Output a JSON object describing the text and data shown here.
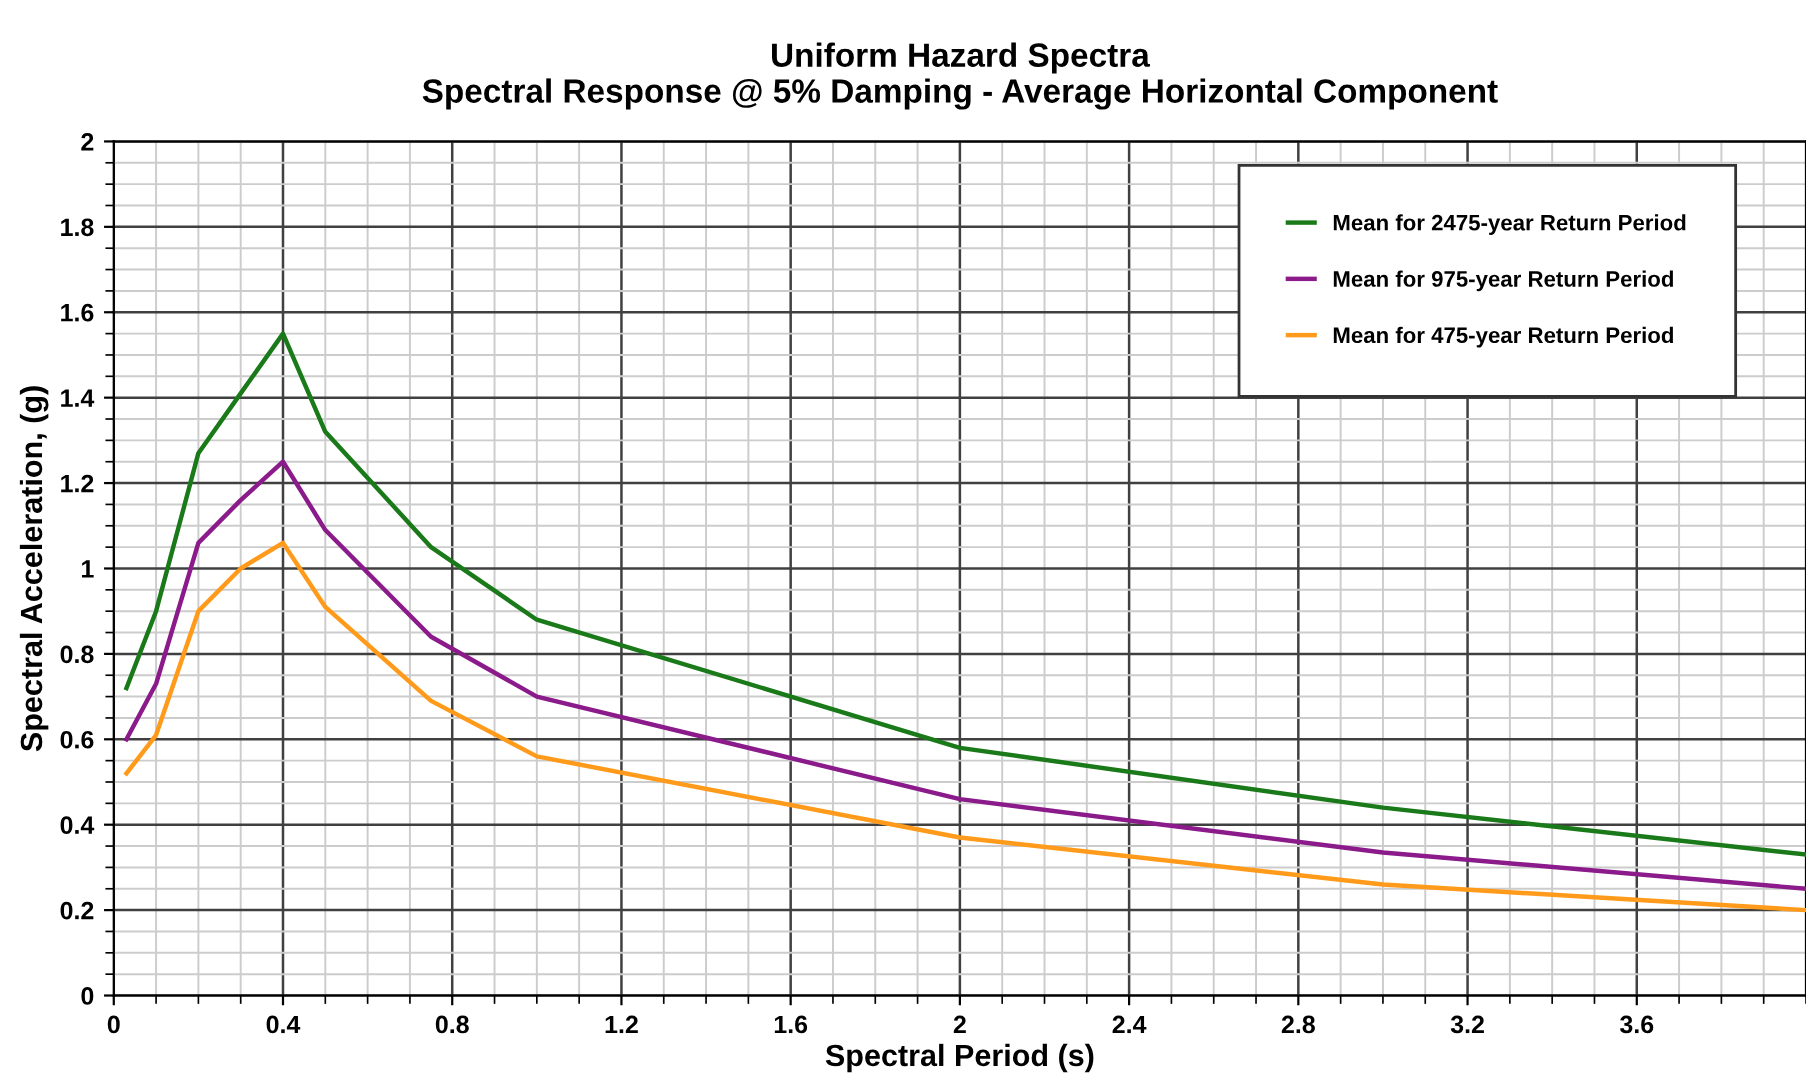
{
  "chart_data": {
    "type": "line",
    "title": "Uniform Hazard Spectra\nSpectral Response @ 5% Damping - Average Horizontal Component",
    "xlabel": "Spectral Period (s)",
    "ylabel": "Spectral Acceleration, (g)",
    "x": [
      0.03,
      0.1,
      0.2,
      0.3,
      0.4,
      0.5,
      0.75,
      1.0,
      2.0,
      3.0,
      4.0
    ],
    "series": [
      {
        "name": "Mean for 2475-year Return Period",
        "color": "#1a7a1a",
        "values": [
          0.72,
          0.9,
          1.27,
          1.41,
          1.55,
          1.32,
          1.05,
          0.88,
          0.58,
          0.44,
          0.33
        ]
      },
      {
        "name": "Mean for 975-year Return Period",
        "color": "#8b1a8b",
        "values": [
          0.6,
          0.73,
          1.06,
          1.16,
          1.25,
          1.09,
          0.84,
          0.7,
          0.46,
          0.335,
          0.25
        ]
      },
      {
        "name": "Mean for 475-year Return Period",
        "color": "#ff9a1a",
        "values": [
          0.52,
          0.61,
          0.9,
          1.0,
          1.06,
          0.91,
          0.69,
          0.56,
          0.37,
          0.26,
          0.2
        ]
      }
    ],
    "xlim": [
      0,
      4
    ],
    "ylim": [
      0,
      2
    ],
    "xticks": [
      0,
      0.4,
      0.8,
      1.2,
      1.6,
      2,
      2.4,
      2.8,
      3.2,
      3.6
    ],
    "yticks": [
      0,
      0.2,
      0.4,
      0.6,
      0.8,
      1,
      1.2,
      1.4,
      1.6,
      1.8,
      2
    ],
    "grid": true,
    "legend": "top right",
    "marker": "none",
    "line_style": "solid"
  }
}
